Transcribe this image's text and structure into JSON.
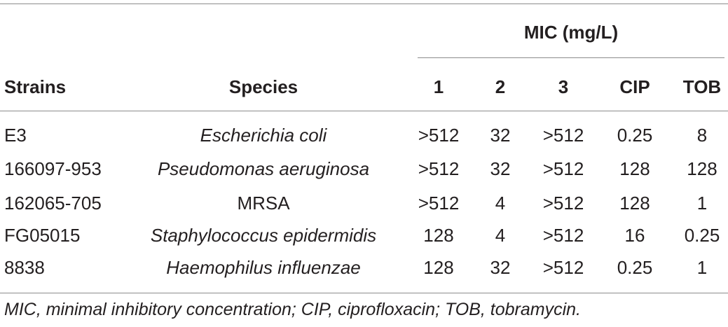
{
  "table": {
    "group_header": "MIC (mg/L)",
    "headers": {
      "strains": "Strains",
      "species": "Species",
      "c1": "1",
      "c2": "2",
      "c3": "3",
      "cip": "CIP",
      "tob": "TOB"
    },
    "rows": [
      {
        "strain": "E3",
        "species": "Escherichia coli",
        "species_italic": true,
        "c1": ">512",
        "c2": "32",
        "c3": ">512",
        "cip": "0.25",
        "tob": "8"
      },
      {
        "strain": "166097-953",
        "species": "Pseudomonas aeruginosa",
        "species_italic": true,
        "c1": ">512",
        "c2": "32",
        "c3": ">512",
        "cip": "128",
        "tob": "128"
      },
      {
        "strain": "162065-705",
        "species": "MRSA",
        "species_italic": false,
        "c1": ">512",
        "c2": "4",
        "c3": ">512",
        "cip": "128",
        "tob": "1"
      },
      {
        "strain": "FG05015",
        "species": "Staphylococcus epidermidis",
        "species_italic": true,
        "c1": "128",
        "c2": "4",
        "c3": ">512",
        "cip": "16",
        "tob": "0.25"
      },
      {
        "strain": "8838",
        "species": "Haemophilus influenzae",
        "species_italic": true,
        "c1": "128",
        "c2": "32",
        "c3": ">512",
        "cip": "0.25",
        "tob": "1"
      }
    ],
    "footnote": "MIC, minimal inhibitory concentration; CIP, ciprofloxacin; TOB, tobramycin."
  }
}
